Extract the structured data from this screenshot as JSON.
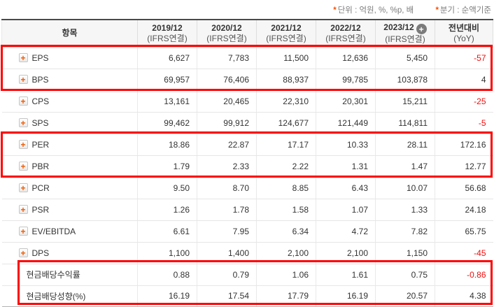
{
  "meta": {
    "unit_note": {
      "star": "*",
      "text": "단위 : 억원, %, %p, 배"
    },
    "basis_note": {
      "star": "*",
      "text": "분기 : 순액기준"
    }
  },
  "icons": {
    "add_column": "+",
    "expand_row": "+"
  },
  "colors": {
    "highlight_border": "#fe0000",
    "negative_value": "#ee0f0f",
    "accent_orange": "#f25a00",
    "header_bg": "#f6f6f6"
  },
  "table": {
    "item_header": "항목",
    "columns": [
      {
        "label": "2019/12",
        "sub": "(IFRS연결)",
        "has_add_icon": false
      },
      {
        "label": "2020/12",
        "sub": "(IFRS연결)",
        "has_add_icon": false
      },
      {
        "label": "2021/12",
        "sub": "(IFRS연결)",
        "has_add_icon": false
      },
      {
        "label": "2022/12",
        "sub": "(IFRS연결)",
        "has_add_icon": false
      },
      {
        "label": "2023/12",
        "sub": "(IFRS연결)",
        "has_add_icon": true
      },
      {
        "label": "전년대비",
        "sub": "(YoY)",
        "has_add_icon": false
      }
    ],
    "rows": [
      {
        "label": "EPS",
        "has_plus": true,
        "values": [
          "6,627",
          "7,783",
          "11,500",
          "12,636",
          "5,450"
        ],
        "yoy": "-57",
        "yoy_negative": true
      },
      {
        "label": "BPS",
        "has_plus": true,
        "values": [
          "69,957",
          "76,406",
          "88,937",
          "99,785",
          "103,878"
        ],
        "yoy": "4",
        "yoy_negative": false
      },
      {
        "label": "CPS",
        "has_plus": true,
        "values": [
          "13,161",
          "20,465",
          "22,310",
          "20,301",
          "15,211"
        ],
        "yoy": "-25",
        "yoy_negative": true
      },
      {
        "label": "SPS",
        "has_plus": true,
        "values": [
          "99,462",
          "99,912",
          "124,677",
          "121,449",
          "114,811"
        ],
        "yoy": "-5",
        "yoy_negative": true
      },
      {
        "label": "PER",
        "has_plus": true,
        "values": [
          "18.86",
          "22.87",
          "17.17",
          "10.33",
          "28.11"
        ],
        "yoy": "172.16",
        "yoy_negative": false
      },
      {
        "label": "PBR",
        "has_plus": true,
        "values": [
          "1.79",
          "2.33",
          "2.22",
          "1.31",
          "1.47"
        ],
        "yoy": "12.77",
        "yoy_negative": false
      },
      {
        "label": "PCR",
        "has_plus": true,
        "values": [
          "9.50",
          "8.70",
          "8.85",
          "6.43",
          "10.07"
        ],
        "yoy": "56.68",
        "yoy_negative": false
      },
      {
        "label": "PSR",
        "has_plus": true,
        "values": [
          "1.26",
          "1.78",
          "1.58",
          "1.07",
          "1.33"
        ],
        "yoy": "24.18",
        "yoy_negative": false
      },
      {
        "label": "EV/EBITDA",
        "has_plus": true,
        "values": [
          "6.61",
          "7.95",
          "6.34",
          "4.72",
          "7.82"
        ],
        "yoy": "65.75",
        "yoy_negative": false
      },
      {
        "label": "DPS",
        "has_plus": true,
        "values": [
          "1,100",
          "1,400",
          "2,100",
          "2,100",
          "1,150"
        ],
        "yoy": "-45",
        "yoy_negative": true
      },
      {
        "label": "현금배당수익률",
        "has_plus": false,
        "values": [
          "0.88",
          "0.79",
          "1.06",
          "1.61",
          "0.75"
        ],
        "yoy": "-0.86",
        "yoy_negative": true
      },
      {
        "label": "현금배당성향(%)",
        "has_plus": false,
        "values": [
          "16.19",
          "17.54",
          "17.79",
          "16.19",
          "20.57"
        ],
        "yoy": "4.38",
        "yoy_negative": false
      }
    ],
    "highlighted_row_groups": [
      [
        0,
        1
      ],
      [
        4,
        5
      ],
      [
        10,
        11
      ]
    ]
  }
}
